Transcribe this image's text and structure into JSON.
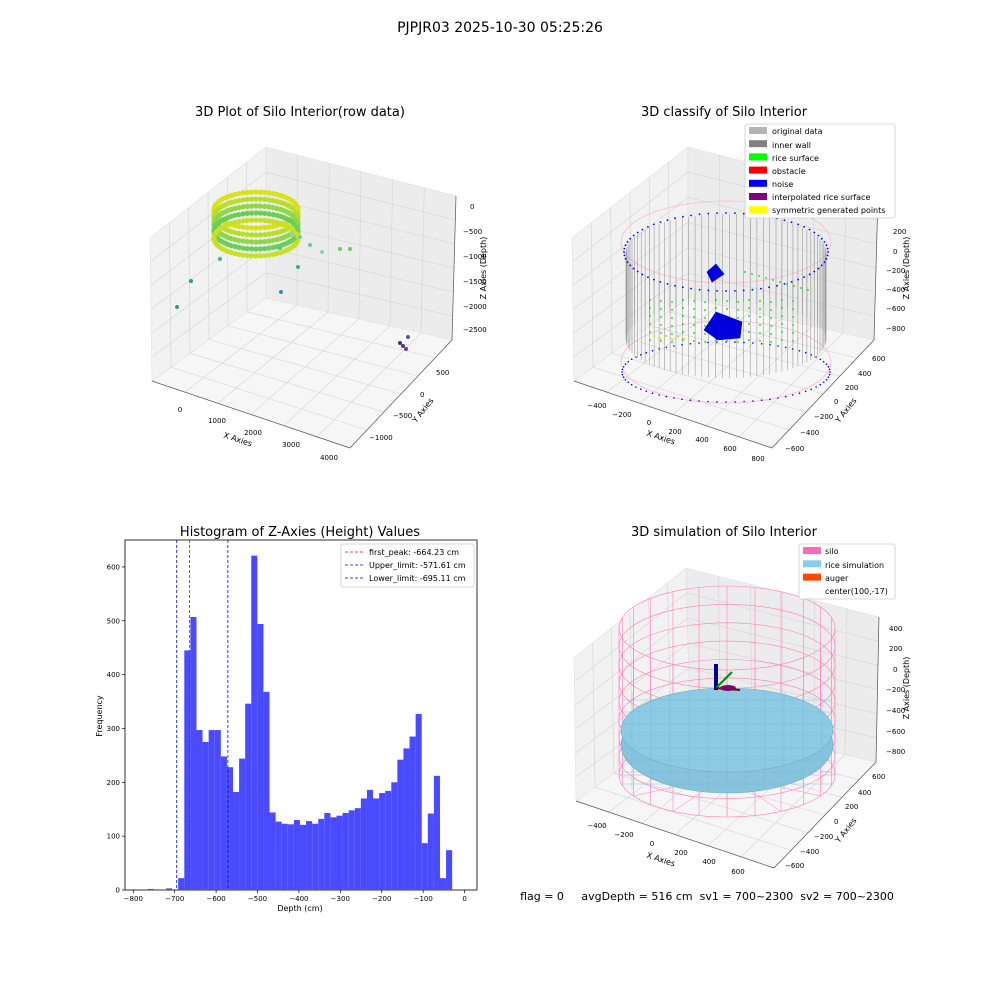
{
  "suptitle": "PJPJR03 2025-10-30 05:25:26",
  "footer": "flag = 0     avgDepth = 516 cm  sv1 = 700~2300  sv2 = 700~2300",
  "chart_data": [
    {
      "type": "scatter",
      "title": "3D Plot of Silo Interior(row data)",
      "xlabel": "X Axies",
      "ylabel": "Y Axies",
      "zlabel": "Z Axies (Depth)",
      "x_ticks": [
        "0",
        "1000",
        "2000",
        "3000",
        "4000"
      ],
      "y_ticks": [
        "500",
        "0",
        "−500",
        "−1000"
      ],
      "z_ticks": [
        "0",
        "−500",
        "−1000",
        "−1500",
        "−2000",
        "−2500"
      ]
    },
    {
      "type": "scatter",
      "title": "3D classify of Silo Interior",
      "xlabel": "X Axies",
      "ylabel": "Y Axies",
      "zlabel": "Z Axies (Depth)",
      "x_ticks": [
        "−400",
        "−200",
        "0",
        "200",
        "400",
        "600",
        "800"
      ],
      "y_ticks": [
        "600",
        "400",
        "200",
        "0",
        "−200",
        "−400",
        "−600"
      ],
      "z_ticks": [
        "200",
        "0",
        "−200",
        "−400",
        "−600",
        "−800"
      ],
      "legend_position": "top-right",
      "legend": [
        {
          "label": "original data",
          "color": "#b4b4b4"
        },
        {
          "label": "inner wall",
          "color": "#808080"
        },
        {
          "label": "rice surface",
          "color": "#00ff00"
        },
        {
          "label": "obstacle",
          "color": "#ff0000"
        },
        {
          "label": "noise",
          "color": "#0000ee"
        },
        {
          "label": "interpolated rice surface",
          "color": "#800080"
        },
        {
          "label": "symmetric generated points",
          "color": "#ffff00"
        }
      ]
    },
    {
      "type": "bar",
      "title": "Histogram of Z-Axies (Height) Values",
      "xlabel": "Depth (cm)",
      "ylabel": "Frequency",
      "xlim": [
        -820,
        30
      ],
      "ylim": [
        0,
        650
      ],
      "x_ticks": [
        "−800",
        "−700",
        "−600",
        "−500",
        "−400",
        "−300",
        "−200",
        "−100",
        "0"
      ],
      "y_ticks": [
        "0",
        "100",
        "200",
        "300",
        "400",
        "500",
        "600"
      ],
      "bar_color": "#4a4aff",
      "bin_start": -765,
      "bin_width": 14.7,
      "values": [
        2,
        0,
        0,
        3,
        0,
        22,
        445,
        507,
        297,
        275,
        297,
        297,
        248,
        228,
        182,
        244,
        346,
        621,
        494,
        368,
        144,
        127,
        123,
        122,
        130,
        121,
        128,
        123,
        132,
        143,
        135,
        138,
        143,
        148,
        152,
        170,
        186,
        170,
        180,
        184,
        200,
        242,
        263,
        285,
        327,
        87,
        142,
        212,
        22,
        74
      ],
      "lines": [
        {
          "label": "first_peak: -664.23 cm",
          "x": -664.23,
          "color": "#ff0000"
        },
        {
          "label": "Upper_limit: -571.61 cm",
          "x": -571.61,
          "color": "#0000dd"
        },
        {
          "label": "Lower_limit: -695.11 cm",
          "x": -695.11,
          "color": "#0000dd"
        }
      ],
      "legend_position": "top-right"
    },
    {
      "type": "scatter",
      "title": "3D simulation of Silo Interior",
      "xlabel": "X Axies",
      "ylabel": "Y Axies",
      "zlabel": "Z Axies (Depth)",
      "x_ticks": [
        "−400",
        "−200",
        "0",
        "200",
        "400",
        "600"
      ],
      "y_ticks": [
        "600",
        "400",
        "200",
        "0",
        "−200",
        "−400",
        "−600"
      ],
      "z_ticks": [
        "400",
        "200",
        "0",
        "−200",
        "−400",
        "−600",
        "−800"
      ],
      "legend_position": "top-right",
      "legend": [
        {
          "label": "silo",
          "color": "#ff69b4"
        },
        {
          "label": "rice simulation",
          "color": "#87ceeb"
        },
        {
          "label": "auger",
          "color": "#ff4500"
        },
        {
          "label": "center(100,-17)",
          "color": ""
        }
      ]
    }
  ]
}
